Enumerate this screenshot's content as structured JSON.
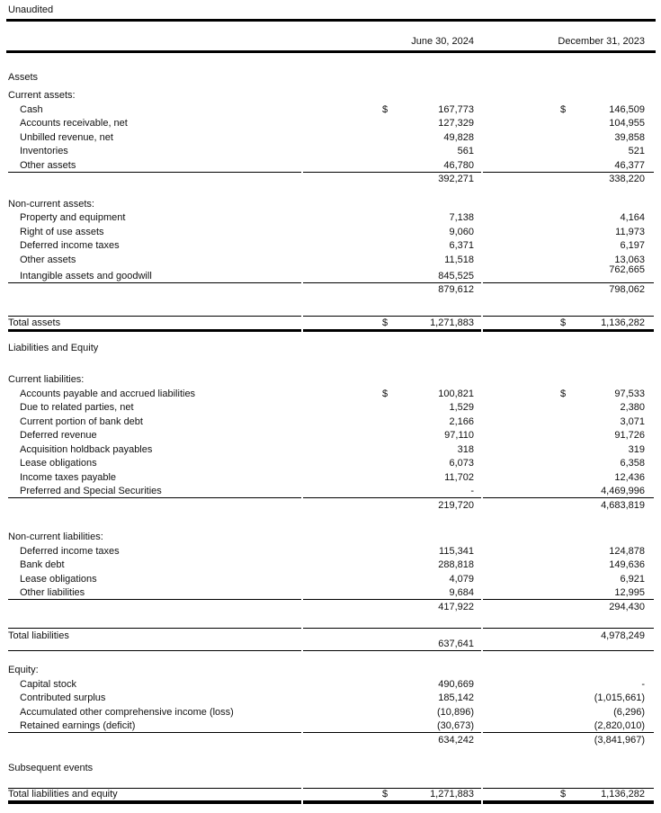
{
  "header": {
    "unaudited": "Unaudited",
    "col1": "June 30, 2024",
    "col2": "December 31, 2023"
  },
  "statement": [
    {
      "kind": "section_title",
      "label": "Assets",
      "mt": 18
    },
    {
      "kind": "group",
      "label": "Current assets:",
      "mt": 5,
      "items": [
        {
          "label": "Cash",
          "d1": "$",
          "v1": "167,773",
          "d2": "$",
          "v2": "146,509"
        },
        {
          "label": "Accounts receivable, net",
          "v1": "127,329",
          "v2": "104,955"
        },
        {
          "label": "Unbilled revenue, net",
          "v1": "49,828",
          "v2": "39,858"
        },
        {
          "label": "Inventories",
          "v1": "561",
          "v2": "521"
        },
        {
          "label": "Other assets",
          "v1": "46,780",
          "v2": "46,377"
        }
      ],
      "subtotal": {
        "v1": "392,271",
        "v2": "338,220"
      }
    },
    {
      "kind": "group",
      "label": "Non-current assets:",
      "mt": 12,
      "items": [
        {
          "label": "Property and equipment",
          "v1": "7,138",
          "v2": "4,164"
        },
        {
          "label": "Right of use assets",
          "v1": "9,060",
          "v2": "11,973"
        },
        {
          "label": "Deferred income taxes",
          "v1": "6,371",
          "v2": "6,197"
        },
        {
          "label": "Other assets",
          "v1": "11,518",
          "v2": "13,063"
        },
        {
          "label": "Intangible assets and goodwill",
          "v1": "845,525",
          "v2": "762,665",
          "v2_raised": true,
          "h": 18
        }
      ],
      "subtotal": {
        "v1": "879,612",
        "v2": "798,062"
      }
    },
    {
      "kind": "total_row",
      "label": "Total assets",
      "d1": "$",
      "v1": "1,271,883",
      "d2": "$",
      "v2": "1,136,282",
      "underline": "thick",
      "mt": 22,
      "h": 18
    },
    {
      "kind": "section_title",
      "label": "Liabilities and Equity",
      "mt": 9
    },
    {
      "kind": "group",
      "label": "Current liabilities:",
      "mt": 20,
      "items": [
        {
          "label": "Accounts payable and accrued liabilities",
          "d1": "$",
          "v1": "100,821",
          "d2": "$",
          "v2": "97,533"
        },
        {
          "label": "Due to related parties, net",
          "v1": "1,529",
          "v2": "2,380"
        },
        {
          "label": "Current portion of bank debt",
          "v1": "2,166",
          "v2": "3,071"
        },
        {
          "label": "Deferred revenue",
          "v1": "97,110",
          "v2": "91,726"
        },
        {
          "label": "Acquisition holdback payables",
          "v1": "318",
          "v2": "319"
        },
        {
          "label": "Lease obligations",
          "v1": "6,073",
          "v2": "6,358"
        },
        {
          "label": "Income taxes payable",
          "v1": "11,702",
          "v2": "12,436"
        },
        {
          "label": "Preferred and Special Securities",
          "v1": "-",
          "v2": "4,469,996"
        }
      ],
      "subtotal": {
        "v1": "219,720",
        "v2": "4,683,819"
      }
    },
    {
      "kind": "group",
      "label": "Non-current liabilities:",
      "mt": 20,
      "items": [
        {
          "label": "Deferred income taxes",
          "v1": "115,341",
          "v2": "124,878"
        },
        {
          "label": "Bank debt",
          "v1": "288,818",
          "v2": "149,636"
        },
        {
          "label": "Lease obligations",
          "v1": "4,079",
          "v2": "6,921"
        },
        {
          "label": "Other liabilities",
          "v1": "9,684",
          "v2": "12,995"
        }
      ],
      "subtotal": {
        "v1": "417,922",
        "v2": "294,430"
      }
    },
    {
      "kind": "total_row",
      "label": "Total liabilities",
      "v1": "637,641",
      "v2": "4,978,249",
      "underline": "thin",
      "stagger": true,
      "mt": 16,
      "h": 26
    },
    {
      "kind": "group",
      "label": "Equity:",
      "mt": 13,
      "items": [
        {
          "label": "Capital stock",
          "v1": "490,669",
          "v2": "-"
        },
        {
          "label": "Contributed surplus",
          "v1": "185,142",
          "v2": "(1,015,661)"
        },
        {
          "label": "Accumulated other comprehensive income (loss)",
          "v1": "(10,896)",
          "v2": "(6,296)"
        },
        {
          "label": "Retained earnings (deficit)",
          "v1": "(30,673)",
          "v2": "(2,820,010)"
        }
      ],
      "subtotal": {
        "v1": "634,242",
        "v2": "(3,841,967)"
      }
    },
    {
      "kind": "section_title",
      "label": "Subsequent events",
      "mt": 16
    },
    {
      "kind": "total_row",
      "label": "Total liabilities and equity",
      "d1": "$",
      "v1": "1,271,883",
      "d2": "$",
      "v2": "1,136,282",
      "underline": "xthick",
      "mt": 15,
      "h": 16
    }
  ]
}
